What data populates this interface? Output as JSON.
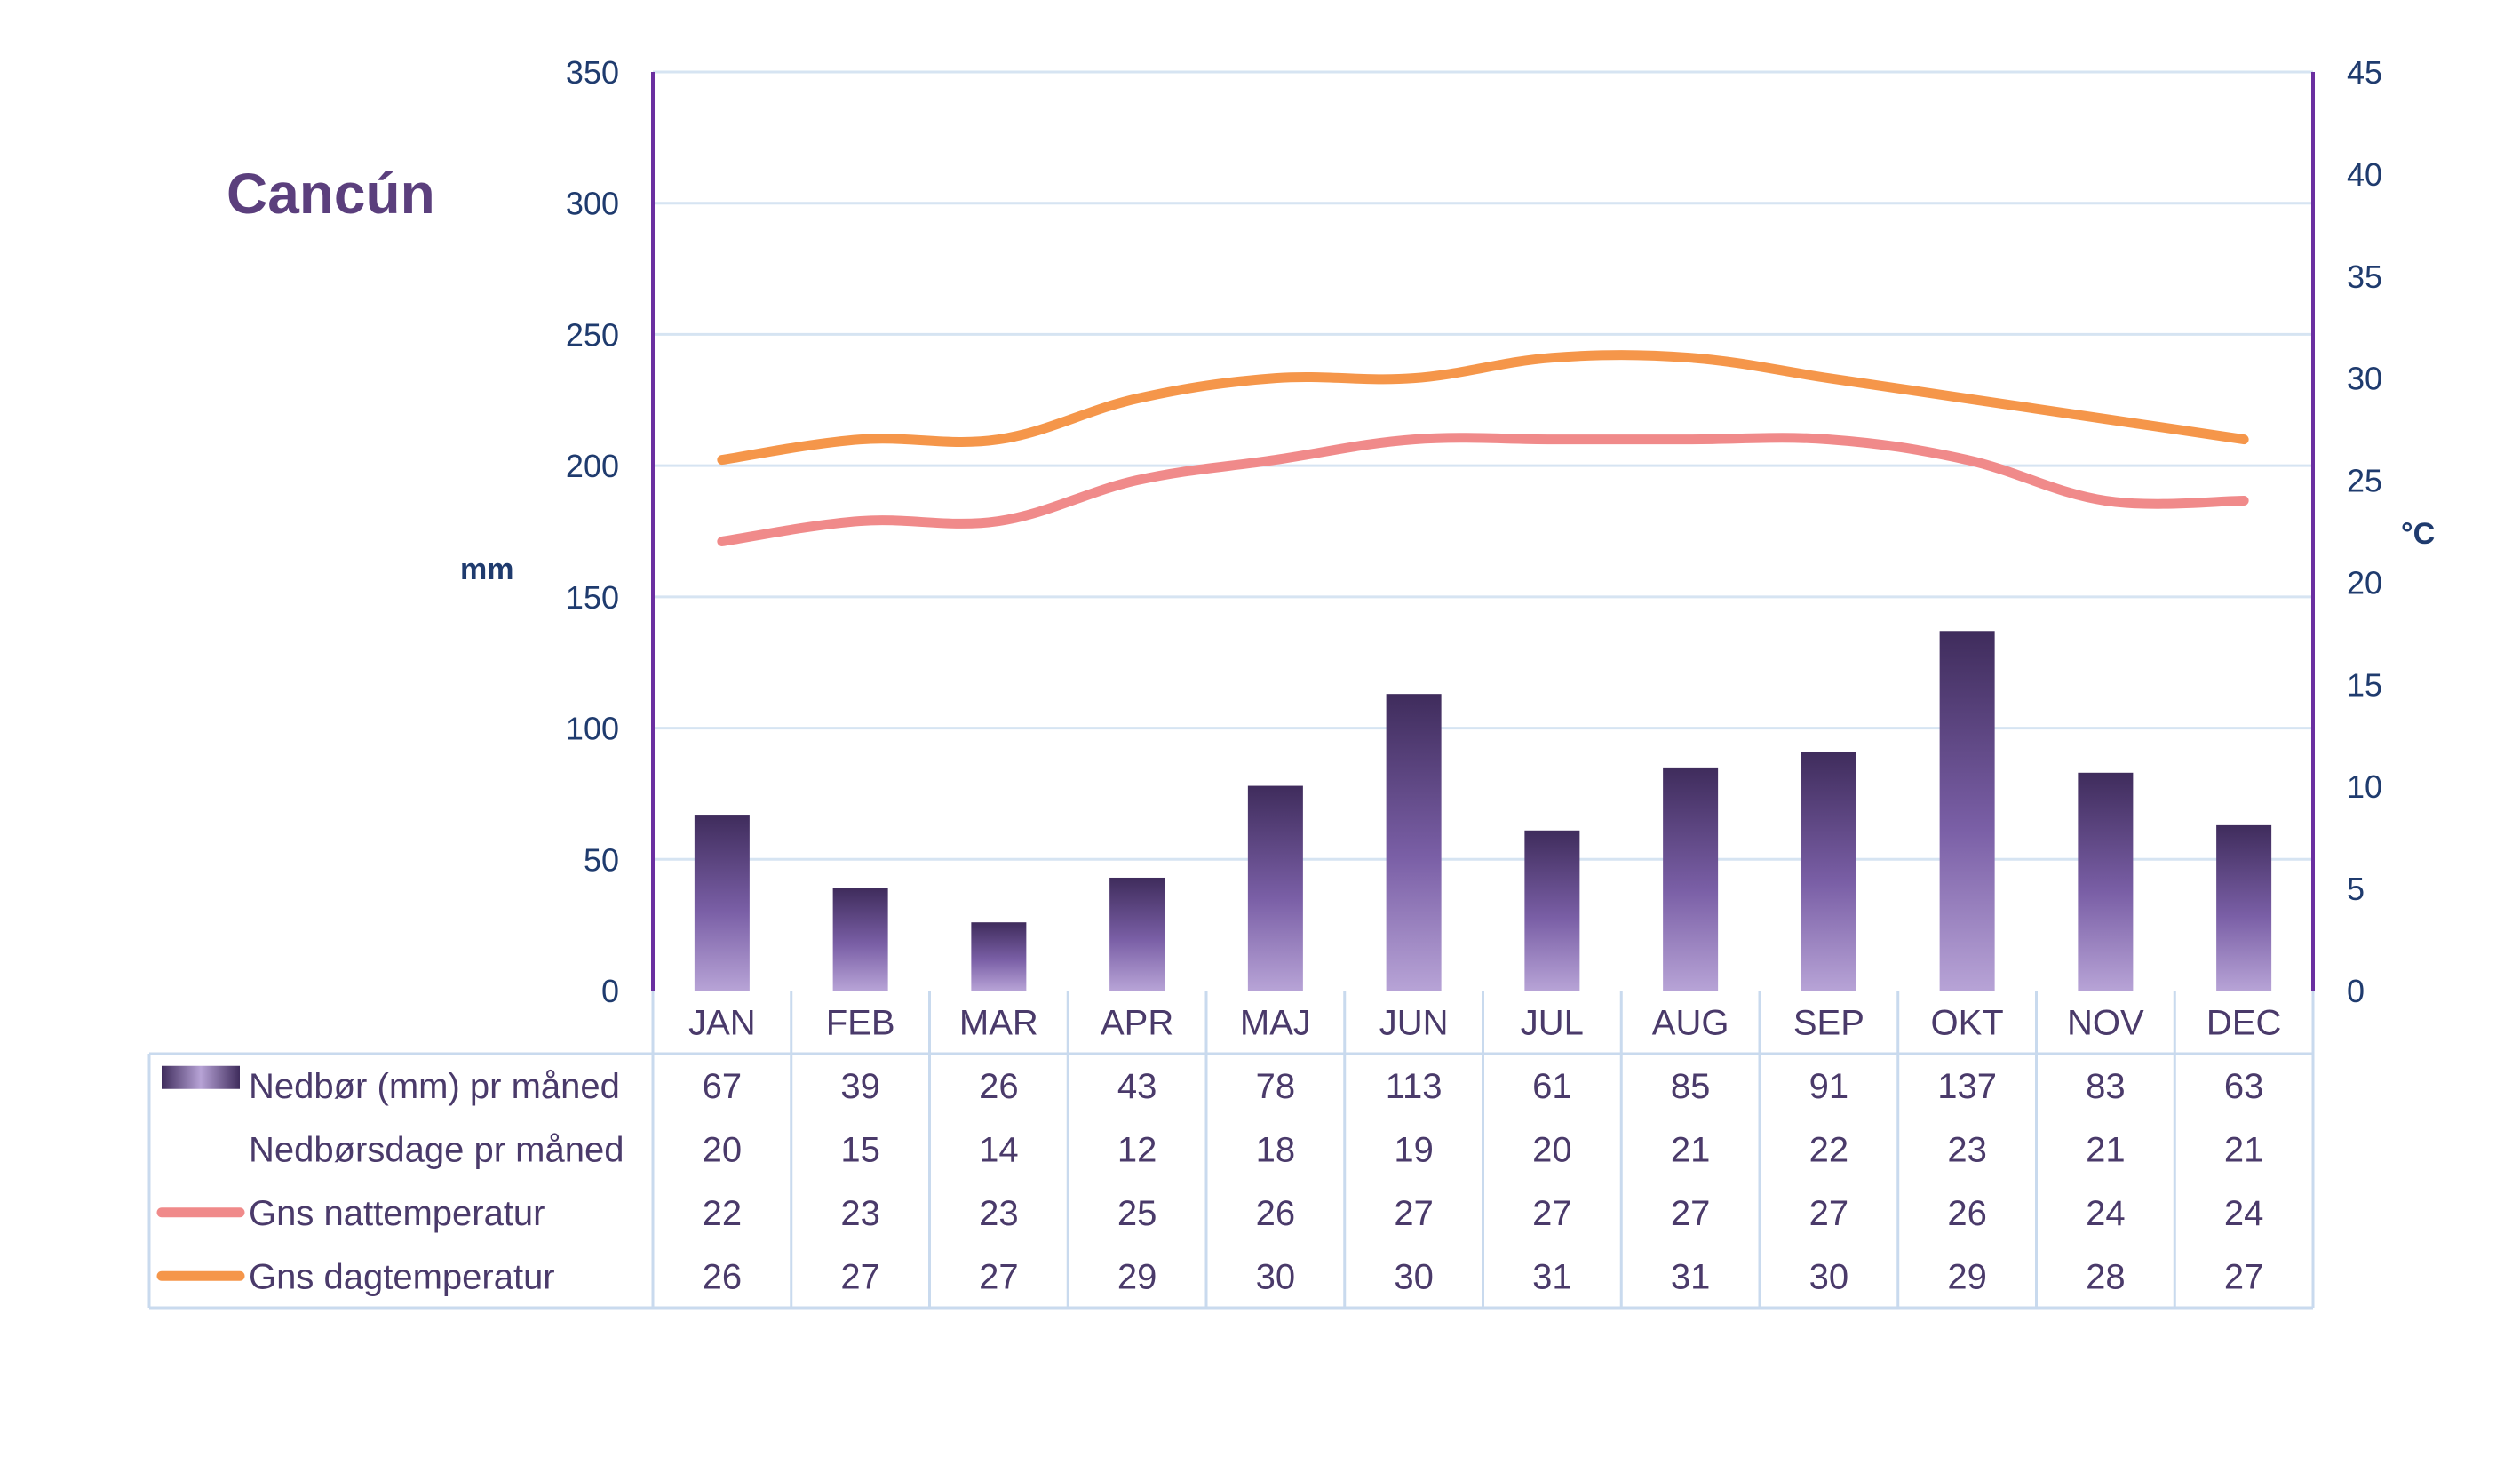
{
  "chart_data": {
    "type": "bar",
    "title": "Cancún",
    "categories": [
      "JAN",
      "FEB",
      "MAR",
      "APR",
      "MAJ",
      "JUN",
      "JUL",
      "AUG",
      "SEP",
      "OKT",
      "NOV",
      "DEC"
    ],
    "left_axis": {
      "label": "mm",
      "ylim": [
        0,
        350
      ],
      "ticks": [
        "0",
        "50",
        "100",
        "150",
        "200",
        "250",
        "300",
        "350"
      ]
    },
    "right_axis": {
      "label": "°C",
      "ylim": [
        0,
        45
      ],
      "ticks": [
        "0",
        "5",
        "10",
        "15",
        "20",
        "25",
        "30",
        "35",
        "40",
        "45"
      ]
    },
    "grid": true,
    "series": [
      {
        "name": "Nedbør (mm) pr måned",
        "kind": "bar",
        "axis": "left",
        "color": "#5b3f86",
        "values": [
          67,
          39,
          26,
          43,
          78,
          113,
          61,
          85,
          91,
          137,
          83,
          63
        ]
      },
      {
        "name": "Nedbørsdage pr måned",
        "kind": "table",
        "color": "",
        "values": [
          20,
          15,
          14,
          12,
          18,
          19,
          20,
          21,
          22,
          23,
          21,
          21
        ]
      },
      {
        "name": "Gns nattemperatur",
        "kind": "line",
        "axis": "right",
        "color": "#f08a8a",
        "values": [
          22,
          23,
          23,
          25,
          26,
          27,
          27,
          27,
          27,
          26,
          24,
          24
        ]
      },
      {
        "name": "Gns dagtemperatur",
        "kind": "line",
        "axis": "right",
        "color": "#f5964a",
        "values": [
          26,
          27,
          27,
          29,
          30,
          30,
          31,
          31,
          30,
          29,
          28,
          27
        ]
      }
    ]
  },
  "colors": {
    "title": "#5b3f7d",
    "axis_line": "#6a2fa0",
    "grid": "#d6e4f2",
    "table_border": "#c9daee"
  }
}
